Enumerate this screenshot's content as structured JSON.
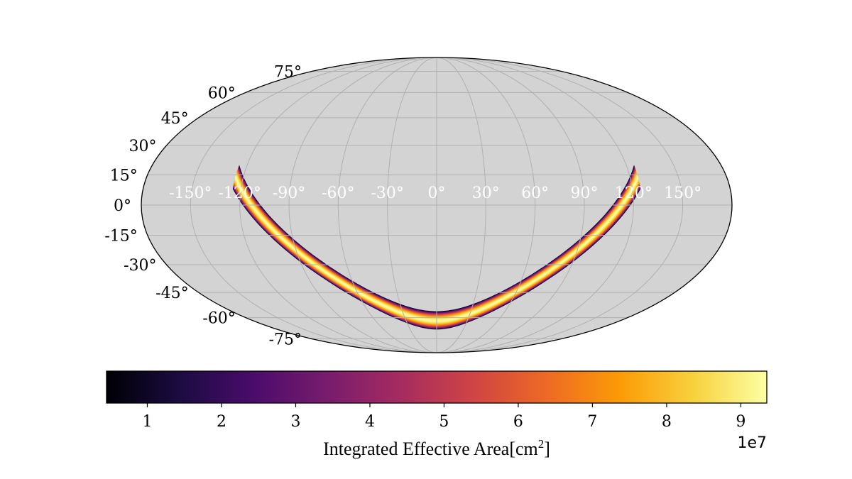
{
  "chart_data": {
    "type": "heatmap",
    "projection": "mollweide",
    "title": "",
    "background_color": "#d3d3d3",
    "grid_color": "#b0b0b0",
    "lon_tick_labels": [
      "-150°",
      "-120°",
      "-90°",
      "-60°",
      "-30°",
      "0°",
      "30°",
      "60°",
      "90°",
      "120°",
      "150°"
    ],
    "lon_ticks": [
      -150,
      -120,
      -90,
      -60,
      -30,
      0,
      30,
      60,
      90,
      120,
      150
    ],
    "lat_tick_labels": [
      "75°",
      "60°",
      "45°",
      "30°",
      "15°",
      "0°",
      "-15°",
      "-30°",
      "-45°",
      "-60°",
      "-75°"
    ],
    "lat_ticks": [
      75,
      60,
      45,
      30,
      15,
      0,
      -15,
      -30,
      -45,
      -60,
      -75
    ],
    "band": {
      "description": "Arc-shaped coverage band of integrated effective area",
      "lon_range": [
        -125,
        125
      ],
      "center_lat_at_edges": 14,
      "center_lat_at_center": -62,
      "half_width_deg": 6,
      "peak_value": 93000000.0,
      "edge_value": 10000000.0
    },
    "colorbar": {
      "colormap": "inferno",
      "vmin": 0.45,
      "vmax": 9.35,
      "tick_values": [
        1,
        2,
        3,
        4,
        5,
        6,
        7,
        8,
        9
      ],
      "tick_labels": [
        "1",
        "2",
        "3",
        "4",
        "5",
        "6",
        "7",
        "8",
        "9"
      ],
      "scale_label": "1e7",
      "label": "Integrated Effective Area",
      "label_unit": "cm",
      "label_unit_power": "2",
      "colormap_stops": [
        "#000004",
        "#1b0c41",
        "#4a0c6b",
        "#781c6d",
        "#a52c60",
        "#cf4446",
        "#ed6925",
        "#fb9b06",
        "#f7d13d",
        "#fcffa4"
      ]
    }
  }
}
